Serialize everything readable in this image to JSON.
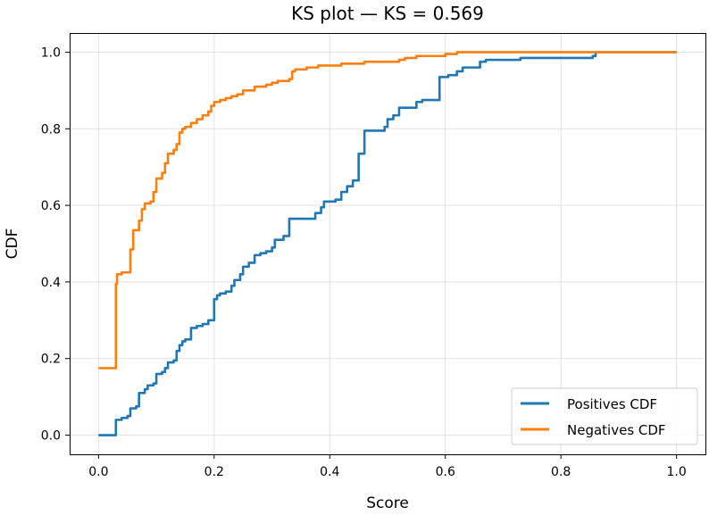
{
  "chart_data": {
    "type": "line",
    "title": "KS plot — KS = 0.569",
    "xlabel": "Score",
    "ylabel": "CDF",
    "xlim": [
      -0.05,
      1.05
    ],
    "ylim": [
      -0.05,
      1.05
    ],
    "xticks": [
      0.0,
      0.2,
      0.4,
      0.6,
      0.8,
      1.0
    ],
    "xtick_labels": [
      "0.0",
      "0.2",
      "0.4",
      "0.6",
      "0.8",
      "1.0"
    ],
    "yticks": [
      0.0,
      0.2,
      0.4,
      0.6,
      0.8,
      1.0
    ],
    "ytick_labels": [
      "0.0",
      "0.2",
      "0.4",
      "0.6",
      "0.8",
      "1.0"
    ],
    "grid": true,
    "legend_position": "lower-right",
    "series": [
      {
        "name": "Positives CDF",
        "color": "#1f77b4",
        "step": true,
        "points": [
          [
            0.0,
            0.0
          ],
          [
            0.03,
            0.0
          ],
          [
            0.03,
            0.04
          ],
          [
            0.04,
            0.045
          ],
          [
            0.05,
            0.05
          ],
          [
            0.055,
            0.07
          ],
          [
            0.065,
            0.075
          ],
          [
            0.07,
            0.11
          ],
          [
            0.08,
            0.12
          ],
          [
            0.085,
            0.13
          ],
          [
            0.095,
            0.135
          ],
          [
            0.1,
            0.16
          ],
          [
            0.11,
            0.165
          ],
          [
            0.115,
            0.175
          ],
          [
            0.12,
            0.19
          ],
          [
            0.13,
            0.195
          ],
          [
            0.135,
            0.22
          ],
          [
            0.14,
            0.235
          ],
          [
            0.145,
            0.245
          ],
          [
            0.15,
            0.25
          ],
          [
            0.16,
            0.28
          ],
          [
            0.17,
            0.285
          ],
          [
            0.18,
            0.29
          ],
          [
            0.19,
            0.3
          ],
          [
            0.2,
            0.355
          ],
          [
            0.205,
            0.365
          ],
          [
            0.21,
            0.37
          ],
          [
            0.22,
            0.375
          ],
          [
            0.23,
            0.39
          ],
          [
            0.235,
            0.405
          ],
          [
            0.245,
            0.42
          ],
          [
            0.25,
            0.44
          ],
          [
            0.26,
            0.45
          ],
          [
            0.27,
            0.47
          ],
          [
            0.28,
            0.475
          ],
          [
            0.29,
            0.48
          ],
          [
            0.3,
            0.49
          ],
          [
            0.305,
            0.51
          ],
          [
            0.32,
            0.52
          ],
          [
            0.33,
            0.565
          ],
          [
            0.375,
            0.58
          ],
          [
            0.385,
            0.595
          ],
          [
            0.39,
            0.61
          ],
          [
            0.41,
            0.615
          ],
          [
            0.42,
            0.635
          ],
          [
            0.43,
            0.65
          ],
          [
            0.44,
            0.665
          ],
          [
            0.45,
            0.735
          ],
          [
            0.46,
            0.795
          ],
          [
            0.495,
            0.805
          ],
          [
            0.5,
            0.825
          ],
          [
            0.51,
            0.835
          ],
          [
            0.52,
            0.855
          ],
          [
            0.55,
            0.87
          ],
          [
            0.56,
            0.875
          ],
          [
            0.59,
            0.935
          ],
          [
            0.605,
            0.94
          ],
          [
            0.62,
            0.95
          ],
          [
            0.63,
            0.96
          ],
          [
            0.66,
            0.975
          ],
          [
            0.67,
            0.98
          ],
          [
            0.73,
            0.985
          ],
          [
            0.855,
            0.99
          ],
          [
            0.86,
            1.0
          ],
          [
            1.0,
            1.0
          ]
        ]
      },
      {
        "name": "Negatives CDF",
        "color": "#ff7f0e",
        "step": true,
        "points": [
          [
            0.0,
            0.175
          ],
          [
            0.03,
            0.175
          ],
          [
            0.03,
            0.395
          ],
          [
            0.032,
            0.42
          ],
          [
            0.04,
            0.425
          ],
          [
            0.055,
            0.485
          ],
          [
            0.06,
            0.535
          ],
          [
            0.07,
            0.56
          ],
          [
            0.075,
            0.59
          ],
          [
            0.08,
            0.605
          ],
          [
            0.09,
            0.61
          ],
          [
            0.095,
            0.635
          ],
          [
            0.1,
            0.67
          ],
          [
            0.11,
            0.685
          ],
          [
            0.115,
            0.71
          ],
          [
            0.12,
            0.735
          ],
          [
            0.13,
            0.745
          ],
          [
            0.135,
            0.76
          ],
          [
            0.14,
            0.79
          ],
          [
            0.145,
            0.8
          ],
          [
            0.15,
            0.805
          ],
          [
            0.16,
            0.815
          ],
          [
            0.17,
            0.825
          ],
          [
            0.18,
            0.835
          ],
          [
            0.19,
            0.845
          ],
          [
            0.195,
            0.86
          ],
          [
            0.2,
            0.87
          ],
          [
            0.21,
            0.875
          ],
          [
            0.22,
            0.88
          ],
          [
            0.23,
            0.885
          ],
          [
            0.24,
            0.89
          ],
          [
            0.25,
            0.9
          ],
          [
            0.27,
            0.91
          ],
          [
            0.29,
            0.915
          ],
          [
            0.3,
            0.92
          ],
          [
            0.31,
            0.925
          ],
          [
            0.33,
            0.93
          ],
          [
            0.335,
            0.95
          ],
          [
            0.34,
            0.955
          ],
          [
            0.36,
            0.96
          ],
          [
            0.38,
            0.965
          ],
          [
            0.42,
            0.97
          ],
          [
            0.46,
            0.975
          ],
          [
            0.52,
            0.98
          ],
          [
            0.53,
            0.985
          ],
          [
            0.55,
            0.99
          ],
          [
            0.6,
            0.995
          ],
          [
            0.62,
            1.0
          ],
          [
            1.0,
            1.0
          ]
        ]
      }
    ]
  }
}
